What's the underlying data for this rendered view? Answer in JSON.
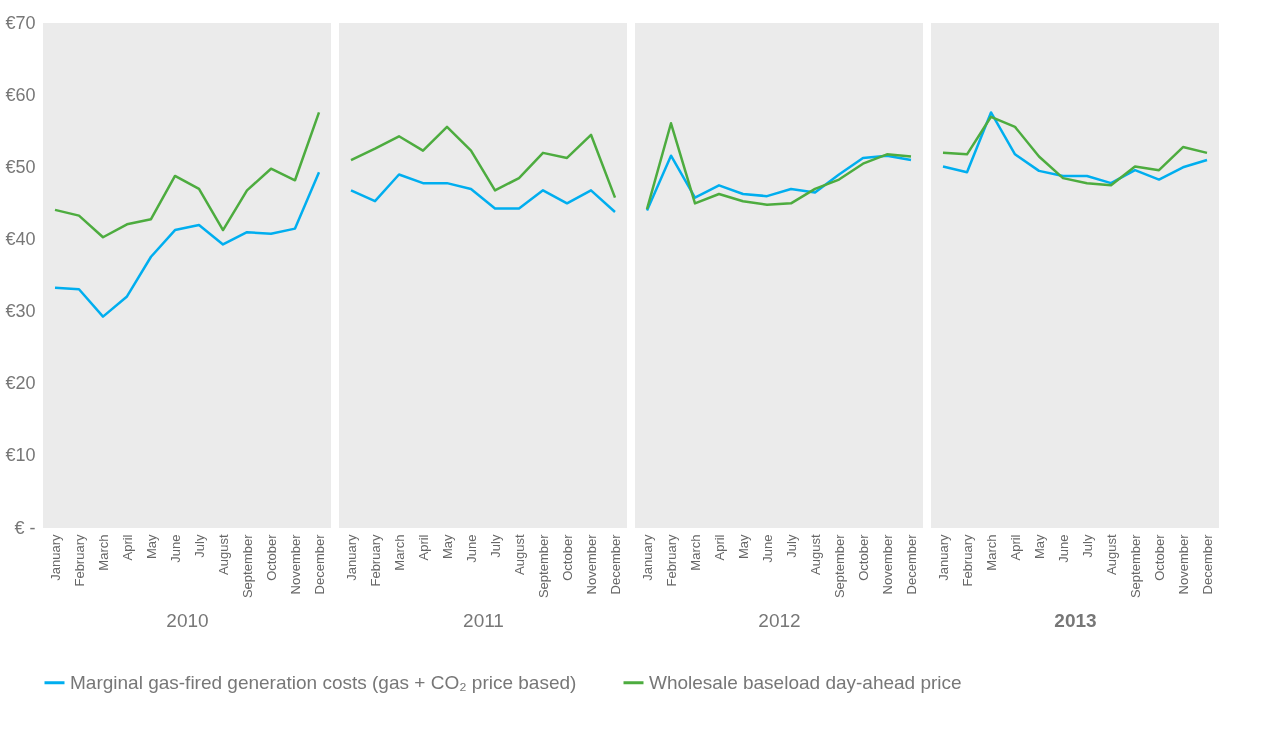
{
  "chart_data": [
    {
      "type": "line",
      "xlabel": "2010",
      "categories": [
        "January",
        "February",
        "March",
        "April",
        "May",
        "June",
        "July",
        "August",
        "September",
        "October",
        "November",
        "December"
      ],
      "series": [
        {
          "name": "Marginal gas-fired generation costs (gas + CO₂ price based)",
          "color": "#00aeef",
          "values": [
            33.3,
            33.1,
            29.3,
            32.1,
            37.6,
            41.3,
            42.0,
            39.3,
            41.0,
            40.8,
            41.5,
            49.3
          ]
        },
        {
          "name": "Wholesale baseload day-ahead price",
          "color": "#4dac3f",
          "values": [
            44.1,
            43.3,
            40.3,
            42.1,
            42.8,
            48.8,
            47.0,
            41.3,
            46.8,
            49.8,
            48.2,
            57.6
          ]
        }
      ],
      "ylim": [
        0,
        70
      ],
      "yticks": [
        {
          "value": 0,
          "label": "€ -"
        },
        {
          "value": 10,
          "label": "€10"
        },
        {
          "value": 20,
          "label": "€20"
        },
        {
          "value": 30,
          "label": "€30"
        },
        {
          "value": 40,
          "label": "€40"
        },
        {
          "value": 50,
          "label": "€50"
        },
        {
          "value": 60,
          "label": "€60"
        },
        {
          "value": 70,
          "label": "€70"
        }
      ],
      "legend": "bottom",
      "marker": "none",
      "line_style": "solid"
    },
    {
      "type": "line",
      "xlabel": "2011",
      "categories": [
        "January",
        "February",
        "March",
        "April",
        "May",
        "June",
        "July",
        "August",
        "September",
        "October",
        "November",
        "December"
      ],
      "series": [
        {
          "name": "Marginal gas-fired generation costs (gas + CO₂ price based)",
          "color": "#00aeef",
          "values": [
            46.8,
            45.3,
            49.0,
            47.8,
            47.8,
            47.0,
            44.3,
            44.3,
            46.8,
            45.0,
            46.8,
            43.8
          ]
        },
        {
          "name": "Wholesale baseload day-ahead price",
          "color": "#4dac3f",
          "values": [
            51.0,
            52.6,
            54.3,
            52.3,
            55.6,
            52.3,
            46.8,
            48.5,
            52.0,
            51.3,
            54.5,
            45.8
          ]
        }
      ],
      "ylim": [
        0,
        70
      ],
      "tick_labels": "x",
      "legend": "bottom",
      "marker": "none",
      "line_style": "solid"
    },
    {
      "type": "line",
      "xlabel": "2012",
      "categories": [
        "January",
        "February",
        "March",
        "April",
        "May",
        "June",
        "July",
        "August",
        "September",
        "October",
        "November",
        "December"
      ],
      "series": [
        {
          "name": "Marginal gas-fired generation costs (gas + CO₂ price based)",
          "color": "#00aeef",
          "values": [
            44.0,
            51.6,
            45.8,
            47.5,
            46.3,
            46.0,
            47.0,
            46.5,
            49.0,
            51.3,
            51.6,
            51.0
          ]
        },
        {
          "name": "Wholesale baseload day-ahead price",
          "color": "#4dac3f",
          "values": [
            44.2,
            56.1,
            45.0,
            46.3,
            45.3,
            44.8,
            45.0,
            47.0,
            48.3,
            50.5,
            51.8,
            51.5
          ]
        }
      ],
      "ylim": [
        0,
        70
      ],
      "tick_labels": "x",
      "legend": "bottom",
      "marker": "none",
      "line_style": "solid"
    },
    {
      "type": "line",
      "xlabel": "2013",
      "categories": [
        "January",
        "February",
        "March",
        "April",
        "May",
        "June",
        "July",
        "August",
        "September",
        "October",
        "November",
        "December"
      ],
      "series": [
        {
          "name": "Marginal gas-fired generation costs (gas + CO₂ price based)",
          "color": "#00aeef",
          "values": [
            50.1,
            49.3,
            57.6,
            51.8,
            49.5,
            48.8,
            48.8,
            47.8,
            49.6,
            48.3,
            50.0,
            51.0
          ]
        },
        {
          "name": "Wholesale baseload day-ahead price",
          "color": "#4dac3f",
          "values": [
            52.0,
            51.8,
            57.0,
            55.6,
            51.5,
            48.5,
            47.8,
            47.5,
            50.1,
            49.6,
            52.8,
            52.0
          ]
        }
      ],
      "ylim": [
        0,
        70
      ],
      "tick_labels": "x",
      "legend": "bottom",
      "marker": "none",
      "line_style": "solid"
    }
  ]
}
